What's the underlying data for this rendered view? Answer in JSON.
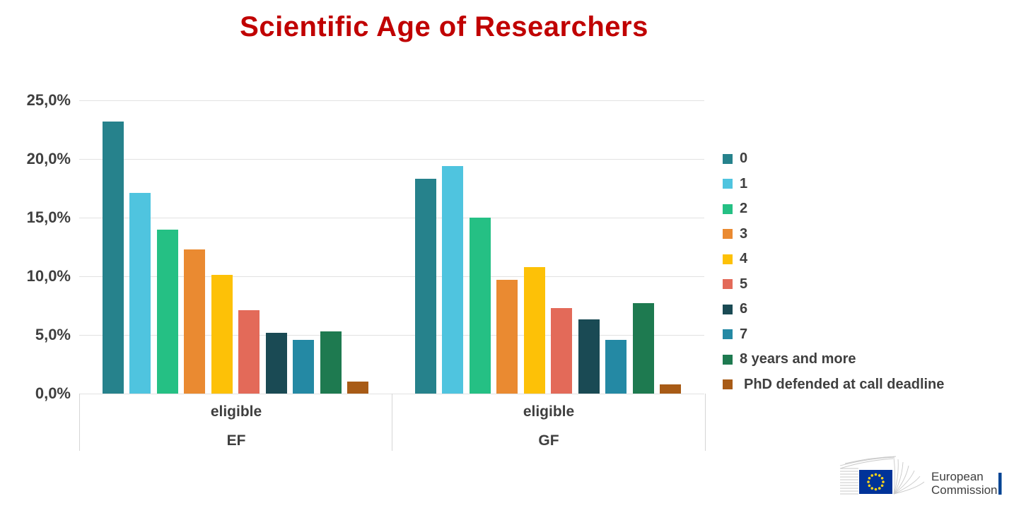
{
  "title": "Scientific Age of Researchers",
  "colors": {
    "title": "#C00000",
    "text": "#3F3F3F",
    "gridline": "#E2E2E2",
    "axis_border": "#D5D5D5",
    "background": "#FFFFFF",
    "logo_text": "#404040",
    "flag_blue": "#003399",
    "flag_star": "#FFD617",
    "logo_bar_blue": "#004494",
    "fan_grey": "#C9C9C9"
  },
  "chart_data": {
    "type": "bar",
    "title": "Scientific Age of Researchers",
    "xlabel": "",
    "ylabel": "",
    "units": "percent",
    "ylim": [
      0,
      25
    ],
    "y_ticks": [
      "25,0%",
      "20,0%",
      "15,0%",
      "10,0%",
      "5,0%",
      "0,0%"
    ],
    "y_tick_values": [
      25,
      20,
      15,
      10,
      5,
      0
    ],
    "grid": true,
    "legend_position": "right",
    "groups": [
      {
        "top_label": "eligible",
        "bottom_label": "EF"
      },
      {
        "top_label": "eligible",
        "bottom_label": "GF"
      }
    ],
    "series": [
      {
        "name": "0",
        "color": "#26828C",
        "values": [
          23.2,
          18.3
        ]
      },
      {
        "name": "1",
        "color": "#4FC4DF",
        "values": [
          17.1,
          19.4
        ]
      },
      {
        "name": "2",
        "color": "#25C084",
        "values": [
          14.0,
          15.0
        ]
      },
      {
        "name": "3",
        "color": "#EA8A31",
        "values": [
          12.3,
          9.7
        ]
      },
      {
        "name": "4",
        "color": "#FDC107",
        "values": [
          10.1,
          10.8
        ]
      },
      {
        "name": "5",
        "color": "#E36A59",
        "values": [
          7.1,
          7.3
        ]
      },
      {
        "name": "6",
        "color": "#1A4A54",
        "values": [
          5.2,
          6.3
        ]
      },
      {
        "name": "7",
        "color": "#2489A4",
        "values": [
          4.6,
          4.6
        ]
      },
      {
        "name": "8 years and more",
        "color": "#1E7A50",
        "values": [
          5.3,
          7.7
        ]
      },
      {
        "name": "PhD defended at call deadline",
        "color": "#A85B16",
        "values": [
          1.0,
          0.8
        ]
      }
    ]
  },
  "logo": {
    "line1": "European",
    "line2": "Commission"
  }
}
